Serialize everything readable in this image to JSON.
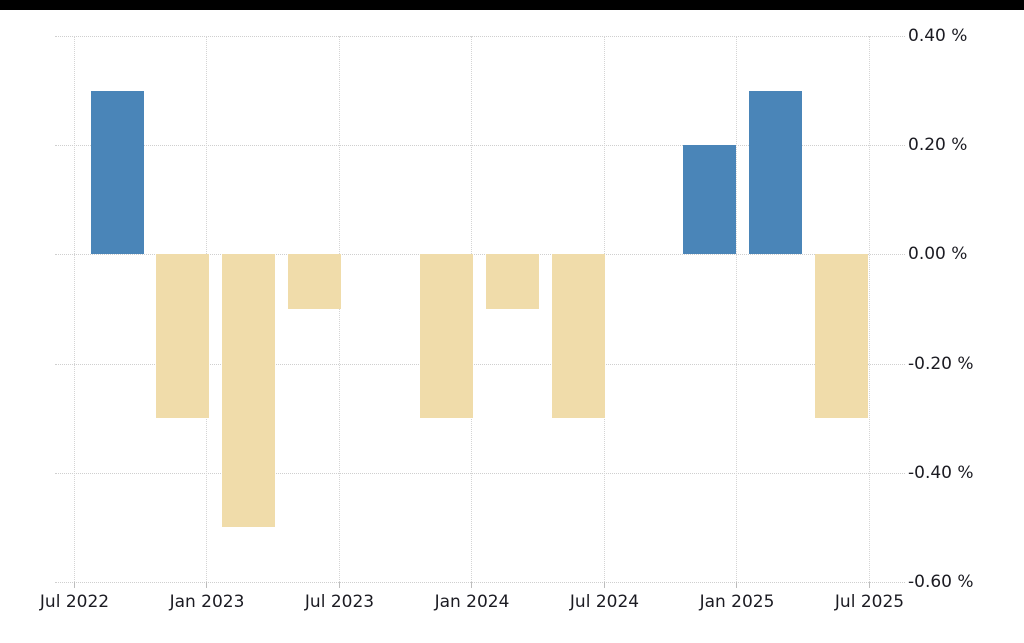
{
  "page": {
    "background_color": "#ffffff",
    "top_bar_color": "#000000"
  },
  "chart_data": {
    "type": "bar",
    "title": "",
    "unit": "%",
    "categories": [
      "Q3 2022",
      "Q4 2022",
      "Q1 2023",
      "Q2 2023",
      "Q3 2023",
      "Q4 2023",
      "Q1 2024",
      "Q2 2024",
      "Q3 2024",
      "Q4 2024",
      "Q1 2025",
      "Q2 2025"
    ],
    "values": [
      0.3,
      -0.3,
      -0.5,
      -0.1,
      0.0,
      -0.3,
      -0.1,
      -0.3,
      0.0,
      0.2,
      0.3,
      -0.3
    ],
    "x_tick_labels": [
      "Jul 2022",
      "Jan 2023",
      "Jul 2023",
      "Jan 2024",
      "Jul 2024",
      "Jan 2025",
      "Jul 2025"
    ],
    "y_ticks": [
      0.4,
      0.2,
      0.0,
      -0.2,
      -0.4,
      -0.6
    ],
    "y_tick_labels": [
      "0.40 %",
      "0.20 %",
      "0.00 %",
      "-0.20 %",
      "-0.40 %",
      "-0.60 %"
    ],
    "ylim": [
      -0.6,
      0.4
    ],
    "xlabel": "",
    "ylabel": "",
    "legend": "none",
    "grid": "dotted",
    "colors": {
      "positive_bar": "#4a85b8",
      "negative_bar": "#f0dcaa",
      "gridline": "#cfcfcf",
      "axis_text": "#1b1b22"
    }
  }
}
